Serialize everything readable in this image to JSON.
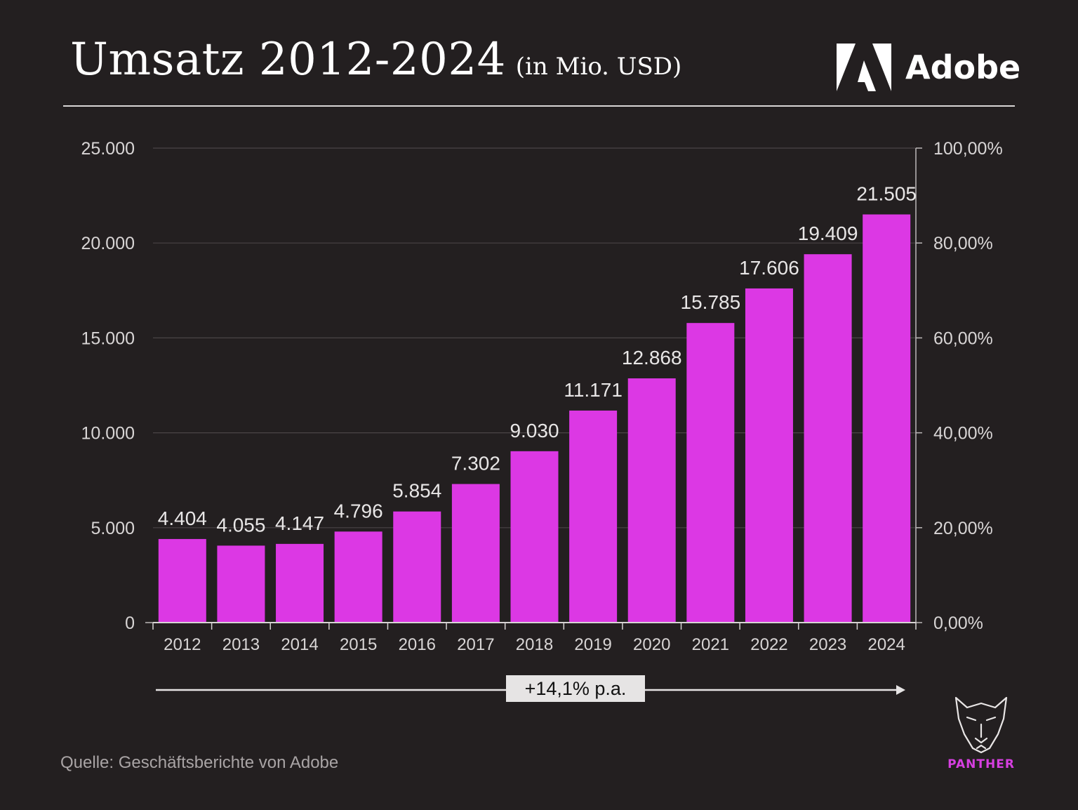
{
  "header": {
    "title": "Umsatz 2012-2024",
    "unit": "(in Mio. USD)",
    "brand": "Adobe"
  },
  "colors": {
    "bar": "#dc38e4",
    "background": "#231f20",
    "accent": "#d63fe0"
  },
  "chart_data": {
    "type": "bar",
    "categories": [
      "2012",
      "2013",
      "2014",
      "2015",
      "2016",
      "2017",
      "2018",
      "2019",
      "2020",
      "2021",
      "2022",
      "2023",
      "2024"
    ],
    "values": [
      4404,
      4055,
      4147,
      4796,
      5854,
      7302,
      9030,
      11171,
      12868,
      15785,
      17606,
      19409,
      21505
    ],
    "value_labels": [
      "4.404",
      "4.055",
      "4.147",
      "4.796",
      "5.854",
      "7.302",
      "9.030",
      "11.171",
      "12.868",
      "15.785",
      "17.606",
      "19.409",
      "21.505"
    ],
    "ylim": [
      0,
      25000
    ],
    "yticks": [
      0,
      5000,
      10000,
      15000,
      20000,
      25000
    ],
    "ytick_labels": [
      "0",
      "5.000",
      "10.000",
      "15.000",
      "20.000",
      "25.000"
    ],
    "y2lim": [
      0,
      100
    ],
    "y2tick_labels": [
      "0,00%",
      "20,00%",
      "40,00%",
      "60,00%",
      "80,00%",
      "100,00%"
    ],
    "grid": true,
    "annotation": "+14,1% p.a."
  },
  "footer": {
    "source": "Quelle: Geschäftsberichte von Adobe",
    "logo_text": "PANTHER"
  }
}
